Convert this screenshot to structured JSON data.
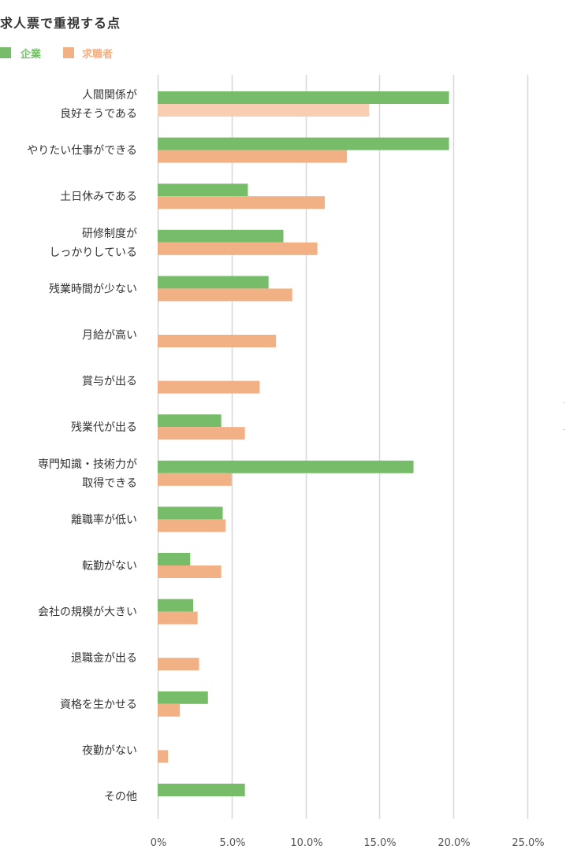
{
  "chart_data": {
    "type": "bar",
    "orientation": "horizontal",
    "title": "求人票で重視する点",
    "xlabel": "",
    "ylabel": "",
    "xlim": [
      0,
      25
    ],
    "x_ticks": [
      "0%",
      "5.0%",
      "10.0%",
      "15.0%",
      "20.0%",
      "25.0%"
    ],
    "grid": true,
    "legend_position": "top-left",
    "categories": [
      [
        "人間関係が",
        "良好そうである"
      ],
      [
        "やりたい仕事ができる"
      ],
      [
        "土日休みである"
      ],
      [
        "研修制度が",
        "しっかりしている"
      ],
      [
        "残業時間が少ない"
      ],
      [
        "月給が高い"
      ],
      [
        "賞与が出る"
      ],
      [
        "残業代が出る"
      ],
      [
        "専門知識・技術力が",
        "取得できる"
      ],
      [
        "離職率が低い"
      ],
      [
        "転勤がない"
      ],
      [
        "会社の規模が大きい"
      ],
      [
        "退職金が出る"
      ],
      [
        "資格を生かせる"
      ],
      [
        "夜勤がない"
      ],
      [
        "その他"
      ]
    ],
    "series": [
      {
        "name": "企業",
        "color": "#77bd69",
        "values": [
          19.7,
          19.7,
          6.1,
          8.5,
          7.5,
          null,
          null,
          4.3,
          17.3,
          4.4,
          2.2,
          2.4,
          null,
          3.4,
          null,
          5.9
        ]
      },
      {
        "name": "求職者",
        "color": "#f2b085",
        "highlight_color": "#f8cdb0",
        "highlight_index": 0,
        "values": [
          14.3,
          12.8,
          11.3,
          10.8,
          9.1,
          8.0,
          6.9,
          5.9,
          5.0,
          4.6,
          4.3,
          2.7,
          2.8,
          1.5,
          0.7,
          null
        ]
      }
    ]
  }
}
